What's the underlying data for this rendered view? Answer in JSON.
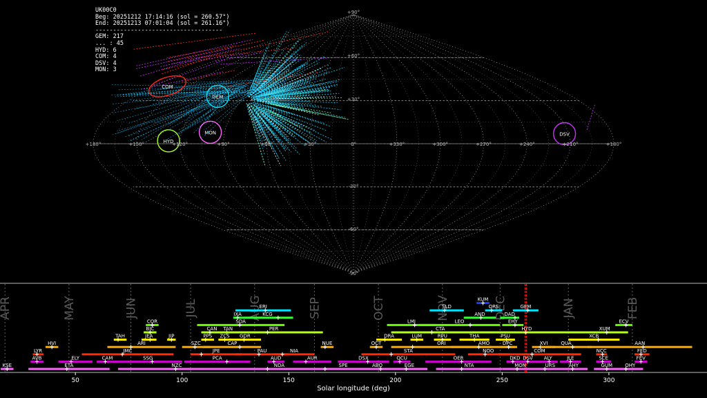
{
  "stats": {
    "station": "UK00C0",
    "beg": "Beg: 20251212 17:14:16 (sol = 260.57°)",
    "end": "End: 20251213 07:01:04 (sol = 261.16°)",
    "divider": "------------------------------------",
    "counts": [
      "GEM: 217",
      "... : 45",
      "HYD: 6",
      "COM: 4",
      "DSV: 4",
      "MON: 3"
    ]
  },
  "sky": {
    "ra_labels": [
      "+180°",
      "+150°",
      "+120°",
      "+90°",
      "+60°",
      "+30°",
      "0°",
      "+330°",
      "+300°",
      "+270°",
      "+240°",
      "+210°",
      "+180°"
    ],
    "dec_labels": [
      "+90°",
      "+60°",
      "+30°",
      "-30°",
      "-60°",
      "-90°"
    ],
    "showers": [
      {
        "code": "GEM",
        "color": "#00e5ff",
        "ra": 112,
        "dec": 33
      },
      {
        "code": "COM",
        "color": "#ff2a1a",
        "ra": 168,
        "dec": 40
      },
      {
        "code": "HYD",
        "color": "#a6ff2a",
        "ra": 128,
        "dec": 2
      },
      {
        "code": "MON",
        "color": "#ff66ff",
        "ra": 100,
        "dec": 8
      },
      {
        "code": "DSV",
        "color": "#cc33ff",
        "ra": 213,
        "dec": 7
      }
    ]
  },
  "chart_data": {
    "type": "timeline",
    "xlabel": "Solar longitude (deg)",
    "xlim": [
      15,
      345
    ],
    "x_ticks": [
      50,
      100,
      150,
      200,
      250,
      300
    ],
    "months": [
      {
        "label": "APR",
        "x": 17
      },
      {
        "label": "MAY",
        "x": 47
      },
      {
        "label": "JUN",
        "x": 76
      },
      {
        "label": "JUL",
        "x": 104
      },
      {
        "label": "AUG",
        "x": 134
      },
      {
        "label": "SEP",
        "x": 162
      },
      {
        "label": "OCT",
        "x": 192
      },
      {
        "label": "NOV",
        "x": 222
      },
      {
        "label": "DEC",
        "x": 249
      },
      {
        "label": "JAN",
        "x": 281
      },
      {
        "label": "FEB",
        "x": 311
      }
    ],
    "current_sol": 261,
    "showers": [
      {
        "code": "KUM",
        "start": 238,
        "end": 244,
        "peak": 241,
        "row": 10,
        "color": "#1a3cff"
      },
      {
        "code": "SLD",
        "start": 216,
        "end": 232,
        "peak": 223,
        "row": 9,
        "color": "#00e5ff"
      },
      {
        "code": "ORS",
        "start": 242,
        "end": 250,
        "peak": 245,
        "row": 9,
        "color": "#00e5ff"
      },
      {
        "code": "GEM",
        "start": 255,
        "end": 267,
        "peak": 262,
        "row": 9,
        "color": "#00e5ff"
      },
      {
        "code": "ERI",
        "start": 125,
        "end": 151,
        "peak": 139,
        "row": 9,
        "color": "#00e5ff"
      },
      {
        "code": "IXA",
        "start": 124,
        "end": 128,
        "peak": 126,
        "row": 8,
        "color": "#33ff33"
      },
      {
        "code": "KCG",
        "start": 128,
        "end": 152,
        "peak": 145,
        "row": 8,
        "color": "#33ff33"
      },
      {
        "code": "AND",
        "start": 232,
        "end": 247,
        "peak": 240,
        "row": 8,
        "color": "#33ff33"
      },
      {
        "code": "DAD",
        "start": 249,
        "end": 258,
        "peak": 256,
        "row": 8,
        "color": "#33ff33"
      },
      {
        "code": "SDA",
        "start": 107,
        "end": 148,
        "peak": 127,
        "row": 7,
        "color": "#66ff00"
      },
      {
        "code": "LMI",
        "start": 196,
        "end": 219,
        "peak": 209,
        "row": 7,
        "color": "#66ff00"
      },
      {
        "code": "LEO",
        "start": 211,
        "end": 249,
        "peak": 235,
        "row": 7,
        "color": "#66ff00"
      },
      {
        "code": "EHY",
        "start": 250,
        "end": 260,
        "peak": 256,
        "row": 7,
        "color": "#66ff00"
      },
      {
        "code": "ECV",
        "start": 303,
        "end": 311,
        "peak": 308,
        "row": 7,
        "color": "#66ff00"
      },
      {
        "code": "COR",
        "start": 83,
        "end": 89,
        "peak": 86,
        "row": 7,
        "color": "#66ff00"
      },
      {
        "code": "BIC",
        "start": 82,
        "end": 88,
        "peak": 85,
        "row": 6,
        "color": "#b3ff1a"
      },
      {
        "code": "CAN",
        "start": 109,
        "end": 119,
        "peak": 113,
        "row": 6,
        "color": "#b3ff1a"
      },
      {
        "code": "TAN",
        "start": 117,
        "end": 126,
        "peak": 121,
        "row": 6,
        "color": "#b3ff1a"
      },
      {
        "code": "PER",
        "start": 120,
        "end": 166,
        "peak": 140,
        "row": 6,
        "color": "#b3ff1a"
      },
      {
        "code": "CTA",
        "start": 198,
        "end": 244,
        "peak": 217,
        "row": 6,
        "color": "#b3ff1a"
      },
      {
        "code": "HYD",
        "start": 234,
        "end": 289,
        "peak": 261,
        "row": 6,
        "color": "#b3ff1a"
      },
      {
        "code": "XUM",
        "start": 287,
        "end": 309,
        "peak": 299,
        "row": 6,
        "color": "#b3ff1a"
      },
      {
        "code": "TAH",
        "start": 68,
        "end": 74,
        "peak": 70,
        "row": 5,
        "color": "#ffee00"
      },
      {
        "code": "JEA",
        "start": 81,
        "end": 88,
        "peak": 85,
        "row": 5,
        "color": "#ffee00"
      },
      {
        "code": "JIP",
        "start": 93,
        "end": 97,
        "peak": 95,
        "row": 5,
        "color": "#ffee00"
      },
      {
        "code": "PPS",
        "start": 109,
        "end": 115,
        "peak": 111,
        "row": 5,
        "color": "#ffee00"
      },
      {
        "code": "ZCS",
        "start": 117,
        "end": 123,
        "peak": 120,
        "row": 5,
        "color": "#ffee00"
      },
      {
        "code": "GDR",
        "start": 122,
        "end": 137,
        "peak": 129,
        "row": 5,
        "color": "#ffee00"
      },
      {
        "code": "DRA",
        "start": 191,
        "end": 203,
        "peak": 195,
        "row": 5,
        "color": "#ffee00"
      },
      {
        "code": "LUM",
        "start": 207,
        "end": 213,
        "peak": 210,
        "row": 5,
        "color": "#ffee00"
      },
      {
        "code": "RPU",
        "start": 218,
        "end": 226,
        "peak": 222,
        "row": 5,
        "color": "#ffee00"
      },
      {
        "code": "THA",
        "start": 230,
        "end": 244,
        "peak": 237,
        "row": 5,
        "color": "#ffee00"
      },
      {
        "code": "PSU",
        "start": 247,
        "end": 256,
        "peak": 252,
        "row": 5,
        "color": "#ffee00"
      },
      {
        "code": "XCB",
        "start": 281,
        "end": 305,
        "peak": 295,
        "row": 5,
        "color": "#ffee00"
      },
      {
        "code": "HVI",
        "start": 36,
        "end": 42,
        "peak": 39,
        "row": 4,
        "color": "#ffaa00"
      },
      {
        "code": "ARI",
        "start": 65,
        "end": 97,
        "peak": 76,
        "row": 4,
        "color": "#ffaa00"
      },
      {
        "code": "SZC",
        "start": 100,
        "end": 113,
        "peak": 106,
        "row": 4,
        "color": "#ffaa00"
      },
      {
        "code": "CAP",
        "start": 110,
        "end": 137,
        "peak": 127,
        "row": 4,
        "color": "#ffaa00"
      },
      {
        "code": "NUE",
        "start": 165,
        "end": 171,
        "peak": 167,
        "row": 4,
        "color": "#ffaa00"
      },
      {
        "code": "OCT",
        "start": 188,
        "end": 194,
        "peak": 191,
        "row": 4,
        "color": "#ffaa00"
      },
      {
        "code": "ORI",
        "start": 198,
        "end": 245,
        "peak": 208,
        "row": 4,
        "color": "#ffaa00"
      },
      {
        "code": "AMO",
        "start": 226,
        "end": 257,
        "peak": 239,
        "row": 4,
        "color": "#ffaa00"
      },
      {
        "code": "DPC",
        "start": 249,
        "end": 256,
        "peak": 253,
        "row": 4,
        "color": "#ffaa00"
      },
      {
        "code": "XVI",
        "start": 264,
        "end": 275,
        "peak": 268,
        "row": 4,
        "color": "#ffaa00"
      },
      {
        "code": "QUA",
        "start": 268,
        "end": 292,
        "peak": 283,
        "row": 4,
        "color": "#ffaa00"
      },
      {
        "code": "AAN",
        "start": 290,
        "end": 339,
        "peak": 316,
        "row": 4,
        "color": "#ffaa00"
      },
      {
        "code": "LYR",
        "start": 30,
        "end": 35,
        "peak": 32,
        "row": 3,
        "color": "#ff2a00"
      },
      {
        "code": "JMC",
        "start": 53,
        "end": 96,
        "peak": 72,
        "row": 3,
        "color": "#ff2a00"
      },
      {
        "code": "JPE",
        "start": 104,
        "end": 128,
        "peak": 109,
        "row": 3,
        "color": "#ff2a00"
      },
      {
        "code": "PAU",
        "start": 125,
        "end": 150,
        "peak": 136,
        "row": 3,
        "color": "#ff2a00"
      },
      {
        "code": "NIA",
        "start": 143,
        "end": 162,
        "peak": 147,
        "row": 3,
        "color": "#ff2a00"
      },
      {
        "code": "STA",
        "start": 184,
        "end": 228,
        "peak": 198,
        "row": 3,
        "color": "#ff2a00"
      },
      {
        "code": "NOO",
        "start": 234,
        "end": 253,
        "peak": 242,
        "row": 3,
        "color": "#ff2a00"
      },
      {
        "code": "COM",
        "start": 248,
        "end": 287,
        "peak": 264,
        "row": 3,
        "color": "#ff2a00"
      },
      {
        "code": "NCC",
        "start": 294,
        "end": 299,
        "peak": 297,
        "row": 3,
        "color": "#ff2a00"
      },
      {
        "code": "FED",
        "start": 312,
        "end": 319,
        "peak": 315,
        "row": 3,
        "color": "#ff2a00"
      },
      {
        "code": "AVB",
        "start": 29,
        "end": 35,
        "peak": 32,
        "row": 2,
        "color": "#cc00cc"
      },
      {
        "code": "ELY",
        "start": 42,
        "end": 58,
        "peak": 48,
        "row": 2,
        "color": "#cc00cc"
      },
      {
        "code": "CAM",
        "start": 60,
        "end": 70,
        "peak": 64,
        "row": 2,
        "color": "#cc00cc"
      },
      {
        "code": "SSG",
        "start": 68,
        "end": 100,
        "peak": 86,
        "row": 2,
        "color": "#cc00cc"
      },
      {
        "code": "PCA",
        "start": 101,
        "end": 132,
        "peak": 121,
        "row": 2,
        "color": "#cc00cc"
      },
      {
        "code": "AUD",
        "start": 140,
        "end": 148,
        "peak": 143,
        "row": 2,
        "color": "#cc00cc"
      },
      {
        "code": "AUR",
        "start": 152,
        "end": 170,
        "peak": 158,
        "row": 2,
        "color": "#cc00cc"
      },
      {
        "code": "DSX",
        "start": 173,
        "end": 197,
        "peak": 187,
        "row": 2,
        "color": "#cc00cc"
      },
      {
        "code": "OCU",
        "start": 199,
        "end": 207,
        "peak": 202,
        "row": 2,
        "color": "#cc00cc"
      },
      {
        "code": "OER",
        "start": 214,
        "end": 245,
        "peak": 231,
        "row": 2,
        "color": "#cc00cc"
      },
      {
        "code": "DKD",
        "start": 252,
        "end": 260,
        "peak": 255,
        "row": 2,
        "color": "#cc00cc"
      },
      {
        "code": "DSV",
        "start": 256,
        "end": 268,
        "peak": 262,
        "row": 2,
        "color": "#cc00cc"
      },
      {
        "code": "ALY",
        "start": 267,
        "end": 276,
        "peak": 272,
        "row": 2,
        "color": "#cc00cc"
      },
      {
        "code": "JLE",
        "start": 277,
        "end": 287,
        "peak": 282,
        "row": 2,
        "color": "#cc00cc"
      },
      {
        "code": "SCE",
        "start": 294,
        "end": 301,
        "peak": 297,
        "row": 2,
        "color": "#cc00cc"
      },
      {
        "code": "FEV",
        "start": 312,
        "end": 318,
        "peak": 315,
        "row": 2,
        "color": "#cc00cc"
      },
      {
        "code": "ETA",
        "start": 28,
        "end": 66,
        "peak": 46,
        "row": 1,
        "color": "#ff66ff"
      },
      {
        "code": "NZC",
        "start": 70,
        "end": 125,
        "peak": 97,
        "row": 1,
        "color": "#ff66ff"
      },
      {
        "code": "NDA",
        "start": 120,
        "end": 171,
        "peak": 140,
        "row": 1,
        "color": "#ff66ff"
      },
      {
        "code": "SPE",
        "start": 160,
        "end": 191,
        "peak": 167,
        "row": 1,
        "color": "#ff66ff"
      },
      {
        "code": "ABO",
        "start": 185,
        "end": 198,
        "peak": 193,
        "row": 1,
        "color": "#ff66ff"
      },
      {
        "code": "EGE",
        "start": 198,
        "end": 215,
        "peak": 205,
        "row": 1,
        "color": "#ff66ff"
      },
      {
        "code": "NTA",
        "start": 219,
        "end": 250,
        "peak": 231,
        "row": 1,
        "color": "#ff66ff"
      },
      {
        "code": "MON",
        "start": 250,
        "end": 267,
        "peak": 257,
        "row": 1,
        "color": "#ff66ff"
      },
      {
        "code": "URS",
        "start": 265,
        "end": 280,
        "peak": 270,
        "row": 1,
        "color": "#ff66ff"
      },
      {
        "code": "AHY",
        "start": 277,
        "end": 290,
        "peak": 283,
        "row": 1,
        "color": "#ff66ff"
      },
      {
        "code": "GUM",
        "start": 293,
        "end": 305,
        "peak": 299,
        "row": 1,
        "color": "#ff66ff"
      },
      {
        "code": "OHY",
        "start": 304,
        "end": 316,
        "peak": 308,
        "row": 1,
        "color": "#ff66ff"
      },
      {
        "code": "KSE",
        "start": 15,
        "end": 21,
        "peak": 18,
        "row": 1,
        "color": "#ff66ff"
      }
    ]
  }
}
